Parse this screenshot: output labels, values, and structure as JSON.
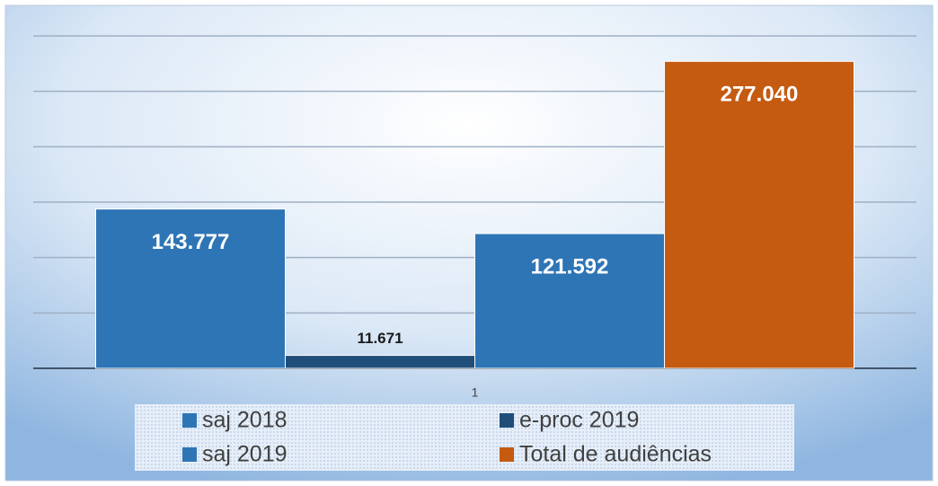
{
  "chart_data": {
    "type": "bar",
    "categories": [
      "1"
    ],
    "series": [
      {
        "name": "saj 2018",
        "color": "#2e75b6",
        "values": [
          143777
        ],
        "value_labels": [
          "143.777"
        ]
      },
      {
        "name": "e-proc 2019",
        "color": "#1f4e79",
        "values": [
          11671
        ],
        "value_labels": [
          "11.671"
        ]
      },
      {
        "name": "saj 2019",
        "color": "#2e75b6",
        "values": [
          121592
        ],
        "value_labels": [
          "121.592"
        ]
      },
      {
        "name": "Total de audiências",
        "color": "#c55a11",
        "values": [
          277040
        ],
        "value_labels": [
          "277.040"
        ]
      }
    ],
    "ylim": [
      0,
      300000
    ],
    "yticks": [
      0,
      50000,
      100000,
      150000,
      200000,
      250000,
      300000
    ],
    "grid": true,
    "legend": "bottom"
  }
}
